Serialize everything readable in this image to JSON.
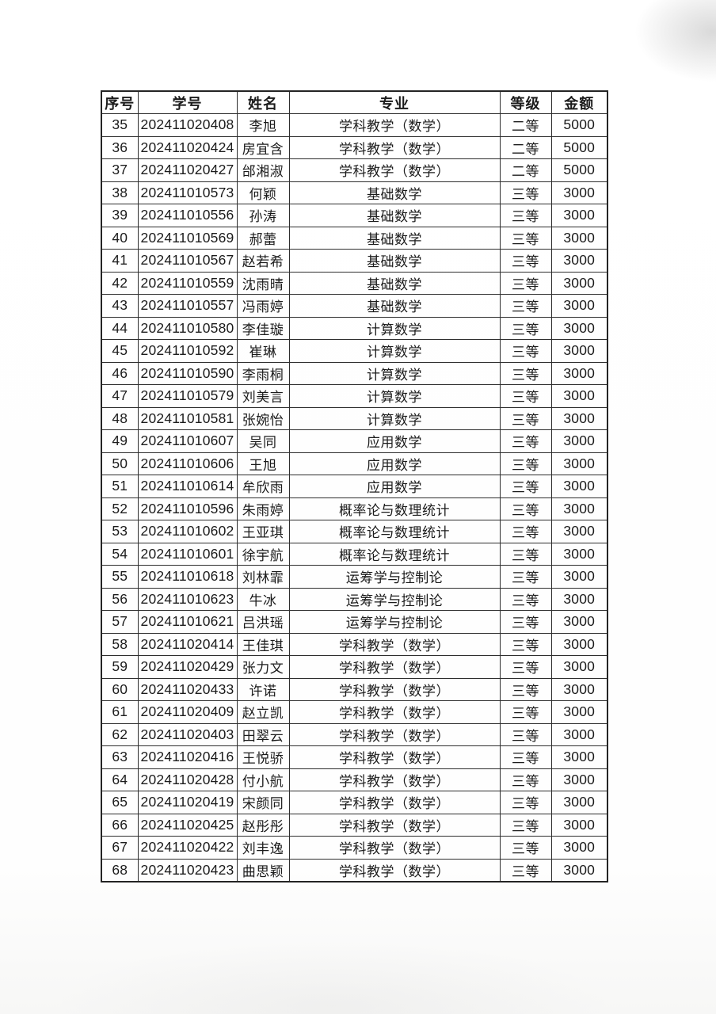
{
  "document": {
    "type": "scanned-award-list-page",
    "colors": {
      "text": "#1b1b1b",
      "border": "#2e2e2e",
      "page": "#ffffff"
    }
  },
  "table": {
    "columns": [
      {
        "key": "no",
        "label": "序号"
      },
      {
        "key": "student_id",
        "label": "学号"
      },
      {
        "key": "name",
        "label": "姓名"
      },
      {
        "key": "major",
        "label": "专业"
      },
      {
        "key": "level",
        "label": "等级"
      },
      {
        "key": "amount",
        "label": "金额"
      }
    ],
    "rows": [
      [
        "35",
        "202411020408",
        "李旭",
        "学科教学（数学）",
        "二等",
        "5000"
      ],
      [
        "36",
        "202411020424",
        "房宜含",
        "学科教学（数学）",
        "二等",
        "5000"
      ],
      [
        "37",
        "202411020427",
        "邰湘淑",
        "学科教学（数学）",
        "二等",
        "5000"
      ],
      [
        "38",
        "202411010573",
        "何颖",
        "基础数学",
        "三等",
        "3000"
      ],
      [
        "39",
        "202411010556",
        "孙涛",
        "基础数学",
        "三等",
        "3000"
      ],
      [
        "40",
        "202411010569",
        "郝蕾",
        "基础数学",
        "三等",
        "3000"
      ],
      [
        "41",
        "202411010567",
        "赵若希",
        "基础数学",
        "三等",
        "3000"
      ],
      [
        "42",
        "202411010559",
        "沈雨晴",
        "基础数学",
        "三等",
        "3000"
      ],
      [
        "43",
        "202411010557",
        "冯雨婷",
        "基础数学",
        "三等",
        "3000"
      ],
      [
        "44",
        "202411010580",
        "李佳璇",
        "计算数学",
        "三等",
        "3000"
      ],
      [
        "45",
        "202411010592",
        "崔琳",
        "计算数学",
        "三等",
        "3000"
      ],
      [
        "46",
        "202411010590",
        "李雨桐",
        "计算数学",
        "三等",
        "3000"
      ],
      [
        "47",
        "202411010579",
        "刘美言",
        "计算数学",
        "三等",
        "3000"
      ],
      [
        "48",
        "202411010581",
        "张婉怡",
        "计算数学",
        "三等",
        "3000"
      ],
      [
        "49",
        "202411010607",
        "吴同",
        "应用数学",
        "三等",
        "3000"
      ],
      [
        "50",
        "202411010606",
        "王旭",
        "应用数学",
        "三等",
        "3000"
      ],
      [
        "51",
        "202411010614",
        "牟欣雨",
        "应用数学",
        "三等",
        "3000"
      ],
      [
        "52",
        "202411010596",
        "朱雨婷",
        "概率论与数理统计",
        "三等",
        "3000"
      ],
      [
        "53",
        "202411010602",
        "王亚琪",
        "概率论与数理统计",
        "三等",
        "3000"
      ],
      [
        "54",
        "202411010601",
        "徐宇航",
        "概率论与数理统计",
        "三等",
        "3000"
      ],
      [
        "55",
        "202411010618",
        "刘林霏",
        "运筹学与控制论",
        "三等",
        "3000"
      ],
      [
        "56",
        "202411010623",
        "牛冰",
        "运筹学与控制论",
        "三等",
        "3000"
      ],
      [
        "57",
        "202411010621",
        "吕洪瑶",
        "运筹学与控制论",
        "三等",
        "3000"
      ],
      [
        "58",
        "202411020414",
        "王佳琪",
        "学科教学（数学）",
        "三等",
        "3000"
      ],
      [
        "59",
        "202411020429",
        "张力文",
        "学科教学（数学）",
        "三等",
        "3000"
      ],
      [
        "60",
        "202411020433",
        "许诺",
        "学科教学（数学）",
        "三等",
        "3000"
      ],
      [
        "61",
        "202411020409",
        "赵立凯",
        "学科教学（数学）",
        "三等",
        "3000"
      ],
      [
        "62",
        "202411020403",
        "田翠云",
        "学科教学（数学）",
        "三等",
        "3000"
      ],
      [
        "63",
        "202411020416",
        "王悦骄",
        "学科教学（数学）",
        "三等",
        "3000"
      ],
      [
        "64",
        "202411020428",
        "付小航",
        "学科教学（数学）",
        "三等",
        "3000"
      ],
      [
        "65",
        "202411020419",
        "宋颜同",
        "学科教学（数学）",
        "三等",
        "3000"
      ],
      [
        "66",
        "202411020425",
        "赵彤彤",
        "学科教学（数学）",
        "三等",
        "3000"
      ],
      [
        "67",
        "202411020422",
        "刘丰逸",
        "学科教学（数学）",
        "三等",
        "3000"
      ],
      [
        "68",
        "202411020423",
        "曲思颖",
        "学科教学（数学）",
        "三等",
        "3000"
      ]
    ]
  }
}
